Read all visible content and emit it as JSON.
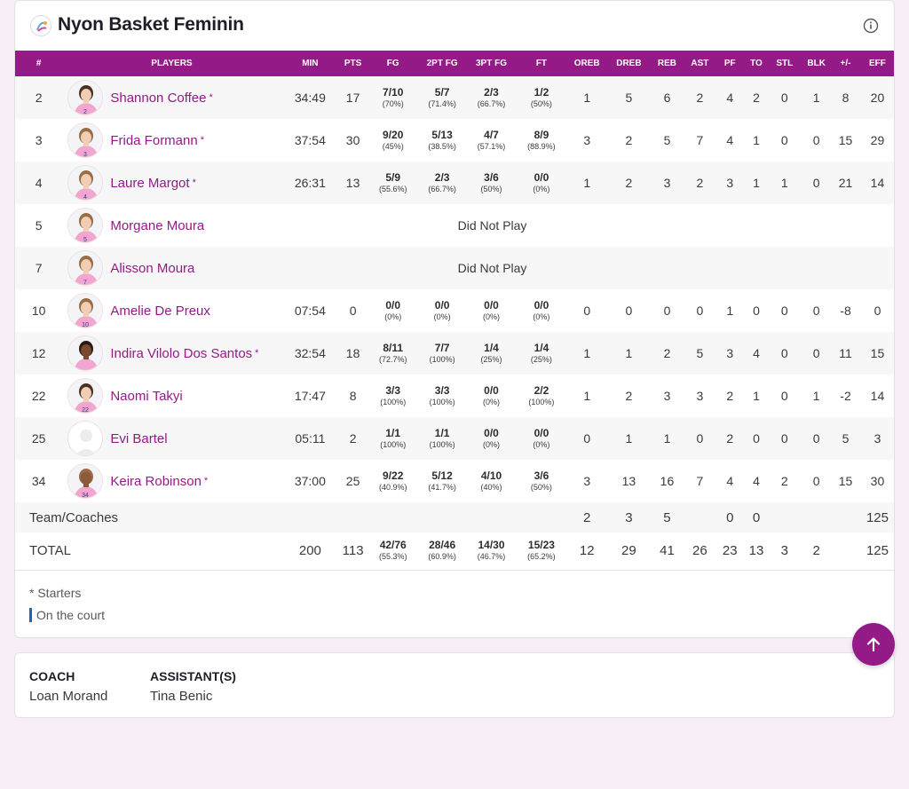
{
  "team": {
    "name": "Nyon Basket Feminin"
  },
  "colors": {
    "accent": "#941a87",
    "on_court": "#1f63b5"
  },
  "columns": [
    "#",
    "PLAYERS",
    "MIN",
    "PTS",
    "FG",
    "2PT FG",
    "3PT FG",
    "FT",
    "OREB",
    "DREB",
    "REB",
    "AST",
    "PF",
    "TO",
    "STL",
    "BLK",
    "+/-",
    "EFF"
  ],
  "players": [
    {
      "num": "2",
      "name": "Shannon Coffee",
      "starter": "*",
      "min": "34:49",
      "pts": "17",
      "fg": "7/10",
      "fg_pct": "(70%)",
      "fg2": "5/7",
      "fg2_pct": "(71.4%)",
      "fg3": "2/3",
      "fg3_pct": "(66.7%)",
      "ft": "1/2",
      "ft_pct": "(50%)",
      "oreb": "1",
      "dreb": "5",
      "reb": "6",
      "ast": "2",
      "pf": "4",
      "to": "2",
      "stl": "0",
      "blk": "1",
      "pm": "8",
      "eff": "20",
      "jersey": "2",
      "photo": true
    },
    {
      "num": "3",
      "name": "Frida Formann",
      "starter": "*",
      "min": "37:54",
      "pts": "30",
      "fg": "9/20",
      "fg_pct": "(45%)",
      "fg2": "5/13",
      "fg2_pct": "(38.5%)",
      "fg3": "4/7",
      "fg3_pct": "(57.1%)",
      "ft": "8/9",
      "ft_pct": "(88.9%)",
      "oreb": "3",
      "dreb": "2",
      "reb": "5",
      "ast": "7",
      "pf": "4",
      "to": "1",
      "stl": "0",
      "blk": "0",
      "pm": "15",
      "eff": "29",
      "jersey": "3",
      "photo": true
    },
    {
      "num": "4",
      "name": "Laure Margot",
      "starter": "*",
      "min": "26:31",
      "pts": "13",
      "fg": "5/9",
      "fg_pct": "(55.6%)",
      "fg2": "2/3",
      "fg2_pct": "(66.7%)",
      "fg3": "3/6",
      "fg3_pct": "(50%)",
      "ft": "0/0",
      "ft_pct": "(0%)",
      "oreb": "1",
      "dreb": "2",
      "reb": "3",
      "ast": "2",
      "pf": "3",
      "to": "1",
      "stl": "1",
      "blk": "0",
      "pm": "21",
      "eff": "14",
      "jersey": "4",
      "photo": true
    },
    {
      "num": "5",
      "name": "Morgane Moura",
      "starter": "",
      "dnp": "Did Not Play",
      "jersey": "5",
      "photo": true
    },
    {
      "num": "7",
      "name": "Alisson Moura",
      "starter": "",
      "dnp": "Did Not Play",
      "jersey": "7",
      "photo": true
    },
    {
      "num": "10",
      "name": "Amelie De Preux",
      "starter": "",
      "min": "07:54",
      "pts": "0",
      "fg": "0/0",
      "fg_pct": "(0%)",
      "fg2": "0/0",
      "fg2_pct": "(0%)",
      "fg3": "0/0",
      "fg3_pct": "(0%)",
      "ft": "0/0",
      "ft_pct": "(0%)",
      "oreb": "0",
      "dreb": "0",
      "reb": "0",
      "ast": "0",
      "pf": "1",
      "to": "0",
      "stl": "0",
      "blk": "0",
      "pm": "-8",
      "eff": "0",
      "jersey": "10",
      "photo": true
    },
    {
      "num": "12",
      "name": "Indira Vilolo Dos Santos",
      "starter": "*",
      "min": "32:54",
      "pts": "18",
      "fg": "8/11",
      "fg_pct": "(72.7%)",
      "fg2": "7/7",
      "fg2_pct": "(100%)",
      "fg3": "1/4",
      "fg3_pct": "(25%)",
      "ft": "1/4",
      "ft_pct": "(25%)",
      "oreb": "1",
      "dreb": "1",
      "reb": "2",
      "ast": "5",
      "pf": "3",
      "to": "4",
      "stl": "0",
      "blk": "0",
      "pm": "11",
      "eff": "15",
      "jersey": "",
      "photo": true
    },
    {
      "num": "22",
      "name": "Naomi Takyi",
      "starter": "",
      "min": "17:47",
      "pts": "8",
      "fg": "3/3",
      "fg_pct": "(100%)",
      "fg2": "3/3",
      "fg2_pct": "(100%)",
      "fg3": "0/0",
      "fg3_pct": "(0%)",
      "ft": "2/2",
      "ft_pct": "(100%)",
      "oreb": "1",
      "dreb": "2",
      "reb": "3",
      "ast": "3",
      "pf": "2",
      "to": "1",
      "stl": "0",
      "blk": "1",
      "pm": "-2",
      "eff": "14",
      "jersey": "22",
      "photo": true
    },
    {
      "num": "25",
      "name": "Evi Bartel",
      "starter": "",
      "min": "05:11",
      "pts": "2",
      "fg": "1/1",
      "fg_pct": "(100%)",
      "fg2": "1/1",
      "fg2_pct": "(100%)",
      "fg3": "0/0",
      "fg3_pct": "(0%)",
      "ft": "0/0",
      "ft_pct": "(0%)",
      "oreb": "0",
      "dreb": "1",
      "reb": "1",
      "ast": "0",
      "pf": "2",
      "to": "0",
      "stl": "0",
      "blk": "0",
      "pm": "5",
      "eff": "3",
      "jersey": "",
      "photo": false
    },
    {
      "num": "34",
      "name": "Keira Robinson",
      "starter": "*",
      "min": "37:00",
      "pts": "25",
      "fg": "9/22",
      "fg_pct": "(40.9%)",
      "fg2": "5/12",
      "fg2_pct": "(41.7%)",
      "fg3": "4/10",
      "fg3_pct": "(40%)",
      "ft": "3/6",
      "ft_pct": "(50%)",
      "oreb": "3",
      "dreb": "13",
      "reb": "16",
      "ast": "7",
      "pf": "4",
      "to": "4",
      "stl": "2",
      "blk": "0",
      "pm": "15",
      "eff": "30",
      "jersey": "34",
      "photo": true
    }
  ],
  "team_coaches": {
    "label": "Team/Coaches",
    "oreb": "2",
    "dreb": "3",
    "reb": "5",
    "ast": "",
    "pf": "0",
    "to": "0",
    "stl": "",
    "blk": "",
    "pm": "",
    "eff": "125"
  },
  "totals": {
    "label": "TOTAL",
    "min": "200",
    "pts": "113",
    "fg": "42/76",
    "fg_pct": "(55.3%)",
    "fg2": "28/46",
    "fg2_pct": "(60.9%)",
    "fg3": "14/30",
    "fg3_pct": "(46.7%)",
    "ft": "15/23",
    "ft_pct": "(65.2%)",
    "oreb": "12",
    "dreb": "29",
    "reb": "41",
    "ast": "26",
    "pf": "23",
    "to": "13",
    "stl": "3",
    "blk": "2",
    "pm": "",
    "eff": "125"
  },
  "legend": {
    "starters": "* Starters",
    "on_court": "On the court"
  },
  "staff": {
    "coach_label": "COACH",
    "coach_name": "Loan Morand",
    "assistant_label": "ASSISTANT(S)",
    "assistant_name": "Tina Benic"
  },
  "icons": {
    "info": "info-icon",
    "scroll_top": "arrow-up-icon",
    "team_logo": "team-logo-icon"
  }
}
